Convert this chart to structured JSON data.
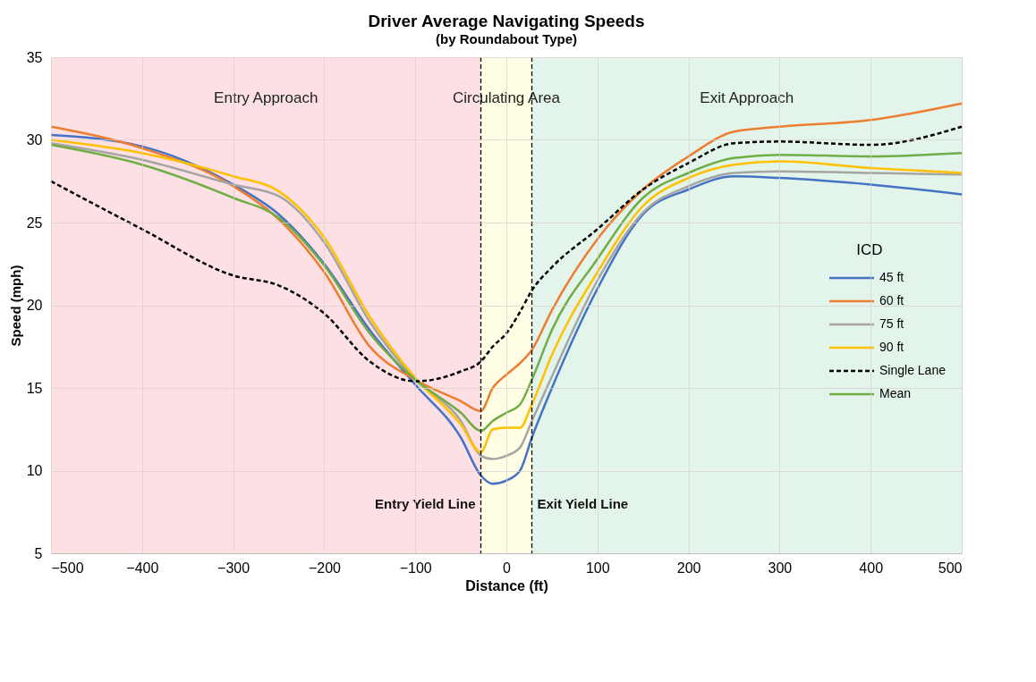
{
  "chart_data": {
    "type": "line",
    "title": "Driver Average Navigating Speeds",
    "subtitle": "(by Roundabout Type)",
    "xlabel": "Distance (ft)",
    "ylabel": "Speed (mph)",
    "legend_title": "ICD",
    "xlim": [
      -500,
      500
    ],
    "xticks": [
      -500,
      -400,
      -300,
      -200,
      -100,
      0,
      100,
      200,
      300,
      400,
      500
    ],
    "ylim": [
      5,
      35
    ],
    "yticks": [
      5,
      10,
      15,
      20,
      25,
      30,
      35
    ],
    "grid": true,
    "legend": "right",
    "bands": [
      {
        "axis": "x",
        "from": -500,
        "to": -28,
        "label": "Entry Approach",
        "color": "#fde0e3"
      },
      {
        "axis": "x",
        "from": -28,
        "to": 28,
        "label": "Circulating Area",
        "color": "#fffde3"
      },
      {
        "axis": "x",
        "from": 28,
        "to": 500,
        "label": "Exit Approach",
        "color": "#e3f4ea"
      }
    ],
    "ref_lines": [
      {
        "axis": "x",
        "value": -28,
        "label": "Entry Yield Line",
        "color": "#000000",
        "line_style": "dashed"
      },
      {
        "axis": "x",
        "value": 28,
        "label": "Exit Yield Line",
        "color": "#000000",
        "line_style": "dashed"
      }
    ],
    "x": [
      -500,
      -400,
      -300,
      -250,
      -200,
      -150,
      -100,
      -50,
      -28,
      -15,
      0,
      15,
      28,
      50,
      100,
      150,
      200,
      250,
      300,
      400,
      500
    ],
    "series": [
      {
        "name": "45 ft",
        "color": "#4472c4",
        "line_style": "solid",
        "values": [
          30.3,
          29.6,
          27.3,
          25.5,
          22.5,
          18.5,
          15.2,
          12.0,
          9.7,
          9.2,
          9.4,
          10.0,
          12.0,
          15.0,
          21.0,
          25.5,
          27.0,
          27.8,
          27.7,
          27.3,
          26.7
        ]
      },
      {
        "name": "60 ft",
        "color": "#ed7d31",
        "line_style": "solid",
        "values": [
          30.8,
          29.5,
          27.2,
          25.2,
          22.0,
          17.5,
          15.5,
          14.2,
          13.6,
          15.0,
          15.8,
          16.5,
          17.3,
          19.7,
          24.0,
          27.0,
          29.0,
          30.5,
          30.8,
          31.2,
          32.2
        ]
      },
      {
        "name": "75 ft",
        "color": "#a5a5a5",
        "line_style": "solid",
        "values": [
          29.8,
          28.8,
          27.3,
          26.6,
          23.8,
          19.0,
          15.5,
          13.0,
          10.9,
          10.7,
          10.9,
          11.4,
          13.0,
          15.7,
          21.5,
          25.6,
          27.2,
          28.0,
          28.1,
          28.0,
          27.9
        ]
      },
      {
        "name": "90 ft",
        "color": "#ffc000",
        "line_style": "solid",
        "values": [
          30.0,
          29.2,
          27.8,
          26.9,
          24.1,
          19.3,
          15.6,
          12.8,
          11.1,
          12.5,
          12.6,
          12.6,
          14.0,
          17.0,
          22.0,
          26.0,
          27.7,
          28.5,
          28.7,
          28.3,
          28.0
        ]
      },
      {
        "name": "Single Lane",
        "color": "#000000",
        "line_style": "dashed",
        "values": [
          27.5,
          24.6,
          21.8,
          21.2,
          19.5,
          16.6,
          15.4,
          16.0,
          16.6,
          17.5,
          18.3,
          19.6,
          20.9,
          22.3,
          24.6,
          27.0,
          28.6,
          29.8,
          29.9,
          29.7,
          30.8
        ]
      },
      {
        "name": "Mean",
        "color": "#70ad47",
        "line_style": "solid",
        "values": [
          29.7,
          28.5,
          26.5,
          25.3,
          22.4,
          18.3,
          15.5,
          13.5,
          12.4,
          13.0,
          13.5,
          14.0,
          15.5,
          18.5,
          22.8,
          26.5,
          28.0,
          28.9,
          29.1,
          29.0,
          29.2
        ]
      }
    ]
  }
}
